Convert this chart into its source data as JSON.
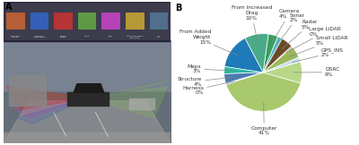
{
  "title_left": "A",
  "title_right": "B",
  "slices": [
    {
      "label": "Computer",
      "value": 41,
      "color": "#a8c96e",
      "pct_label": "41%"
    },
    {
      "label": "DSRC",
      "value": 9,
      "color": "#b8d888",
      "pct_label": "9%"
    },
    {
      "label": "GPS_INS",
      "value": 2,
      "color": "#c8dff0",
      "pct_label": "2%"
    },
    {
      "label": "Small LiDAR",
      "value": 5,
      "color": "#9ab85a",
      "pct_label": "5%"
    },
    {
      "label": "Large LiDAR",
      "value": 0,
      "color": "#4a6e28",
      "pct_label": "0%"
    },
    {
      "label": "Radar",
      "value": 5,
      "color": "#6b4a28",
      "pct_label": "5%"
    },
    {
      "label": "Sonar",
      "value": 2,
      "color": "#4eb8c8",
      "pct_label": "2%"
    },
    {
      "label": "Camera",
      "value": 4,
      "color": "#3a9e5c",
      "pct_label": "4%"
    },
    {
      "label": "From Increased\nDrag",
      "value": 10,
      "color": "#4aaa88",
      "pct_label": "10%"
    },
    {
      "label": "From Added\nWeight",
      "value": 15,
      "color": "#1e7ab8",
      "pct_label": "15%"
    },
    {
      "label": "Maps",
      "value": 3,
      "color": "#28b8a0",
      "pct_label": "3%"
    },
    {
      "label": "Structure",
      "value": 4,
      "color": "#4a7ab0",
      "pct_label": "4%"
    },
    {
      "label": "Harness",
      "value": 0,
      "color": "#6888b8",
      "pct_label": "0%"
    }
  ],
  "bg_color": "#ffffff",
  "label_fontsize": 4.2,
  "startangle": 198
}
